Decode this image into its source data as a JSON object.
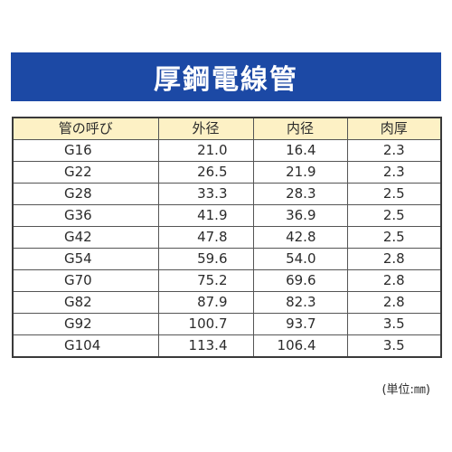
{
  "colors": {
    "banner_bg": "#1c49a5",
    "header_bg": "#fdf1c5",
    "border": "#555555"
  },
  "banner": {
    "title": "厚鋼電線管"
  },
  "table": {
    "headers": [
      "管の呼び",
      "外径",
      "内径",
      "肉厚"
    ],
    "rows": [
      [
        "G16",
        "21.0",
        "16.4",
        "2.3"
      ],
      [
        "G22",
        "26.5",
        "21.9",
        "2.3"
      ],
      [
        "G28",
        "33.3",
        "28.3",
        "2.5"
      ],
      [
        "G36",
        "41.9",
        "36.9",
        "2.5"
      ],
      [
        "G42",
        "47.8",
        "42.8",
        "2.5"
      ],
      [
        "G54",
        "59.6",
        "54.0",
        "2.8"
      ],
      [
        "G70",
        "75.2",
        "69.6",
        "2.8"
      ],
      [
        "G82",
        "87.9",
        "82.3",
        "2.8"
      ],
      [
        "G92",
        "100.7",
        "93.7",
        "3.5"
      ],
      [
        "G104",
        "113.4",
        "106.4",
        "3.5"
      ]
    ]
  },
  "unit_note": "(単位:㎜)"
}
